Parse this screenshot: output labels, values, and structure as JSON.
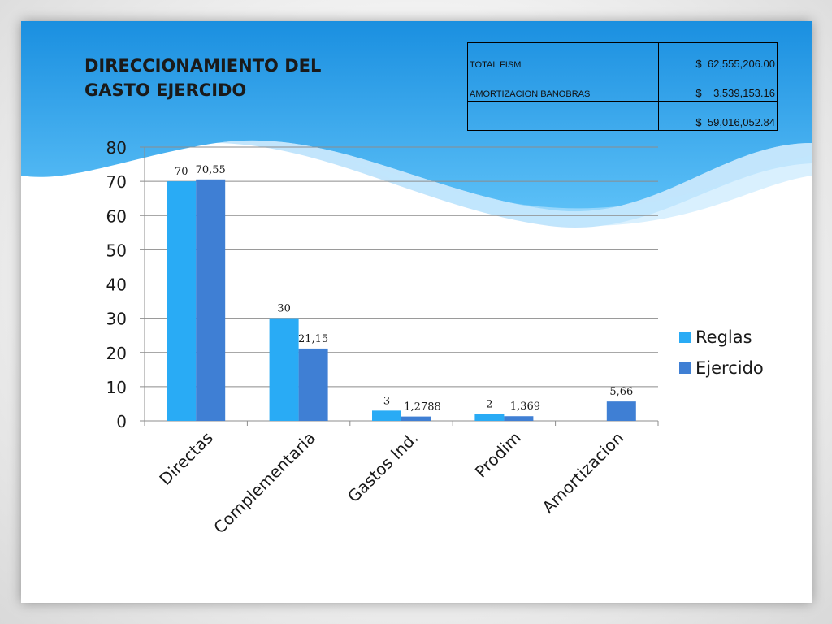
{
  "slide": {
    "title_line1": "DIRECCIONAMIENTO DEL",
    "title_line2": "GASTO EJERCIDO"
  },
  "summary_table": [
    {
      "label": "TOTAL FISM",
      "amount": "$  62,555,206.00"
    },
    {
      "label": "AMORTIZACION BANOBRAS",
      "amount": "$    3,539,153.16"
    },
    {
      "label": "",
      "amount": "$  59,016,052.84"
    }
  ],
  "colors": {
    "reglas": "#29abf5",
    "ejercido": "#3f7fd4",
    "wave_dark": "#1a8fe0",
    "wave_light": "#8fd0fa"
  },
  "chart_data": {
    "type": "bar",
    "categories": [
      "Directas",
      "Complementaria",
      "Gastos Ind.",
      "Prodim",
      "Amortizacion"
    ],
    "series": [
      {
        "name": "Reglas",
        "values": [
          70,
          30,
          3,
          2,
          null
        ],
        "labels": [
          "70",
          "30",
          "3",
          "2",
          ""
        ]
      },
      {
        "name": "Ejercido",
        "values": [
          70.55,
          21.15,
          1.2788,
          1.369,
          5.66
        ],
        "labels": [
          "70,55",
          "21,15",
          "1,2788",
          "1,369",
          "5,66"
        ]
      }
    ],
    "ylim": [
      0,
      80
    ],
    "yticks": [
      "0",
      "10",
      "20",
      "30",
      "40",
      "50",
      "60",
      "70",
      "80"
    ],
    "grid": true,
    "legend_position": "right"
  }
}
